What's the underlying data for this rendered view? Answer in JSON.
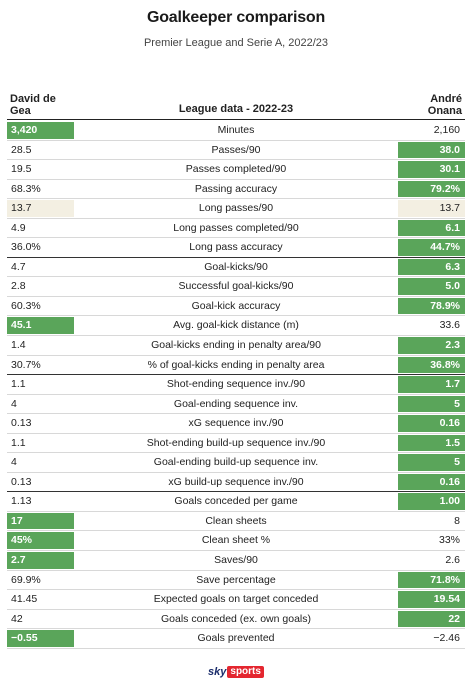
{
  "title": "Goalkeeper comparison",
  "subtitle": "Premier League and Serie A, 2022/23",
  "header": {
    "left_line1": "David de",
    "left_line2": "Gea",
    "center": "League data - 2022-23",
    "right_line1": "André",
    "right_line2": "Onana"
  },
  "colors": {
    "winner": "#5aa55a",
    "tie": "#f3efe2",
    "text": "#222222"
  },
  "rows": [
    {
      "metric": "Minutes",
      "left": "3,420",
      "right": "2,160",
      "winner": "left"
    },
    {
      "metric": "Passes/90",
      "left": "28.5",
      "right": "38.0",
      "winner": "right"
    },
    {
      "metric": "Passes completed/90",
      "left": "19.5",
      "right": "30.1",
      "winner": "right"
    },
    {
      "metric": "Passing accuracy",
      "left": "68.3%",
      "right": "79.2%",
      "winner": "right"
    },
    {
      "metric": "Long passes/90",
      "left": "13.7",
      "right": "13.7",
      "winner": "tie"
    },
    {
      "metric": "Long passes completed/90",
      "left": "4.9",
      "right": "6.1",
      "winner": "right"
    },
    {
      "metric": "Long pass accuracy",
      "left": "36.0%",
      "right": "44.7%",
      "winner": "right",
      "sep": true
    },
    {
      "metric": "Goal-kicks/90",
      "left": "4.7",
      "right": "6.3",
      "winner": "right"
    },
    {
      "metric": "Successful goal-kicks/90",
      "left": "2.8",
      "right": "5.0",
      "winner": "right"
    },
    {
      "metric": "Goal-kick accuracy",
      "left": "60.3%",
      "right": "78.9%",
      "winner": "right"
    },
    {
      "metric": "Avg. goal-kick distance (m)",
      "left": "45.1",
      "right": "33.6",
      "winner": "left"
    },
    {
      "metric": "Goal-kicks ending in penalty area/90",
      "left": "1.4",
      "right": "2.3",
      "winner": "right"
    },
    {
      "metric": "% of goal-kicks ending in penalty area",
      "left": "30.7%",
      "right": "36.8%",
      "winner": "right",
      "sep": true
    },
    {
      "metric": "Shot-ending sequence inv./90",
      "left": "1.1",
      "right": "1.7",
      "winner": "right"
    },
    {
      "metric": "Goal-ending sequence inv.",
      "left": "4",
      "right": "5",
      "winner": "right"
    },
    {
      "metric": "xG sequence inv./90",
      "left": "0.13",
      "right": "0.16",
      "winner": "right"
    },
    {
      "metric": "Shot-ending build-up sequence inv./90",
      "left": "1.1",
      "right": "1.5",
      "winner": "right"
    },
    {
      "metric": "Goal-ending build-up sequence inv.",
      "left": "4",
      "right": "5",
      "winner": "right"
    },
    {
      "metric": "xG build-up sequence inv./90",
      "left": "0.13",
      "right": "0.16",
      "winner": "right",
      "sep": true
    },
    {
      "metric": "Goals conceded per game",
      "left": "1.13",
      "right": "1.00",
      "winner": "right"
    },
    {
      "metric": "Clean sheets",
      "left": "17",
      "right": "8",
      "winner": "left"
    },
    {
      "metric": "Clean sheet %",
      "left": "45%",
      "right": "33%",
      "winner": "left"
    },
    {
      "metric": "Saves/90",
      "left": "2.7",
      "right": "2.6",
      "winner": "left"
    },
    {
      "metric": "Save percentage",
      "left": "69.9%",
      "right": "71.8%",
      "winner": "right"
    },
    {
      "metric": "Expected goals on target conceded",
      "left": "41.45",
      "right": "19.54",
      "winner": "right"
    },
    {
      "metric": "Goals conceded (ex. own goals)",
      "left": "42",
      "right": "22",
      "winner": "right"
    },
    {
      "metric": "Goals prevented",
      "left": "−0.55",
      "right": "−2.46",
      "winner": "left"
    }
  ],
  "logo": {
    "sky": "sky",
    "sports": "sports"
  }
}
